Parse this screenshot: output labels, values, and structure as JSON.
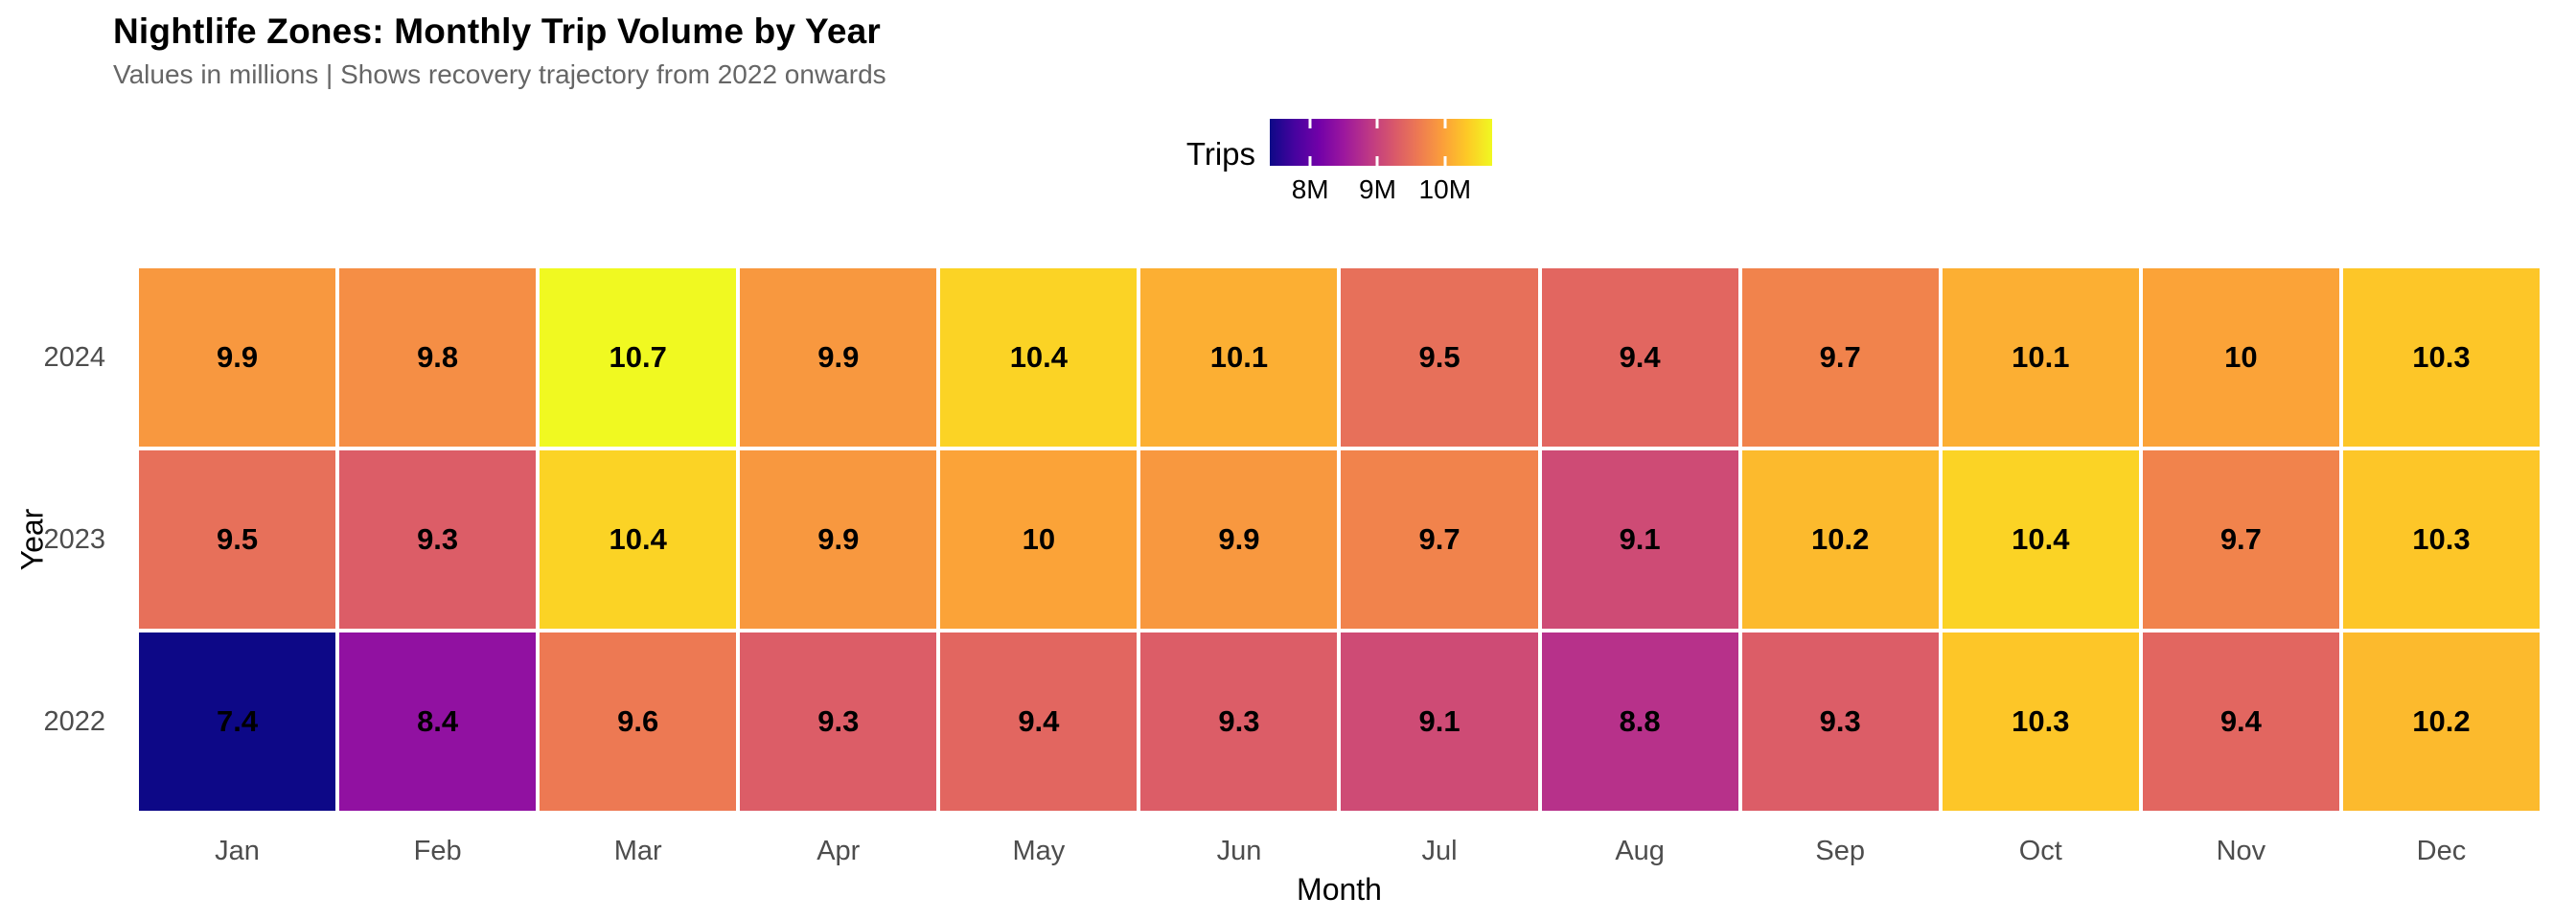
{
  "chart_data": {
    "type": "heatmap",
    "title": "Nightlife Zones: Monthly Trip Volume by Year",
    "subtitle": "Values in millions | Shows recovery trajectory from 2022 onwards",
    "xlabel": "Month",
    "ylabel": "Year",
    "categories_x": [
      "Jan",
      "Feb",
      "Mar",
      "Apr",
      "May",
      "Jun",
      "Jul",
      "Aug",
      "Sep",
      "Oct",
      "Nov",
      "Dec"
    ],
    "categories_y": [
      "2024",
      "2023",
      "2022"
    ],
    "series": [
      {
        "name": "2024",
        "values": [
          9.9,
          9.8,
          10.7,
          9.9,
          10.4,
          10.1,
          9.5,
          9.4,
          9.7,
          10.1,
          10,
          10.3
        ]
      },
      {
        "name": "2023",
        "values": [
          9.5,
          9.3,
          10.4,
          9.9,
          10,
          9.9,
          9.7,
          9.1,
          10.2,
          10.4,
          9.7,
          10.3
        ]
      },
      {
        "name": "2022",
        "values": [
          7.4,
          8.4,
          9.6,
          9.3,
          9.4,
          9.3,
          9.1,
          8.8,
          9.3,
          10.3,
          9.4,
          10.2
        ]
      }
    ],
    "legend": {
      "title": "Trips",
      "tick_labels": [
        "8M",
        "9M",
        "10M"
      ],
      "tick_values": [
        8,
        9,
        10
      ],
      "domain": [
        7.4,
        10.7
      ],
      "position": "top-center"
    },
    "colormap": {
      "name": "plasma",
      "anchors": [
        "#0d0887",
        "#46039f",
        "#7201a8",
        "#9c179e",
        "#bd3786",
        "#d8576b",
        "#ed7953",
        "#fb9f3a",
        "#fdca26",
        "#f0f921"
      ]
    },
    "layout": {
      "grid": "off",
      "cell_border_color": "#ffffff",
      "background": "#ffffff"
    },
    "colors": {
      "title": "#000000",
      "subtitle": "#666666",
      "tick_label": "#4d4d4d",
      "axis_title": "#000000",
      "cell_value_text": "#000000"
    }
  }
}
